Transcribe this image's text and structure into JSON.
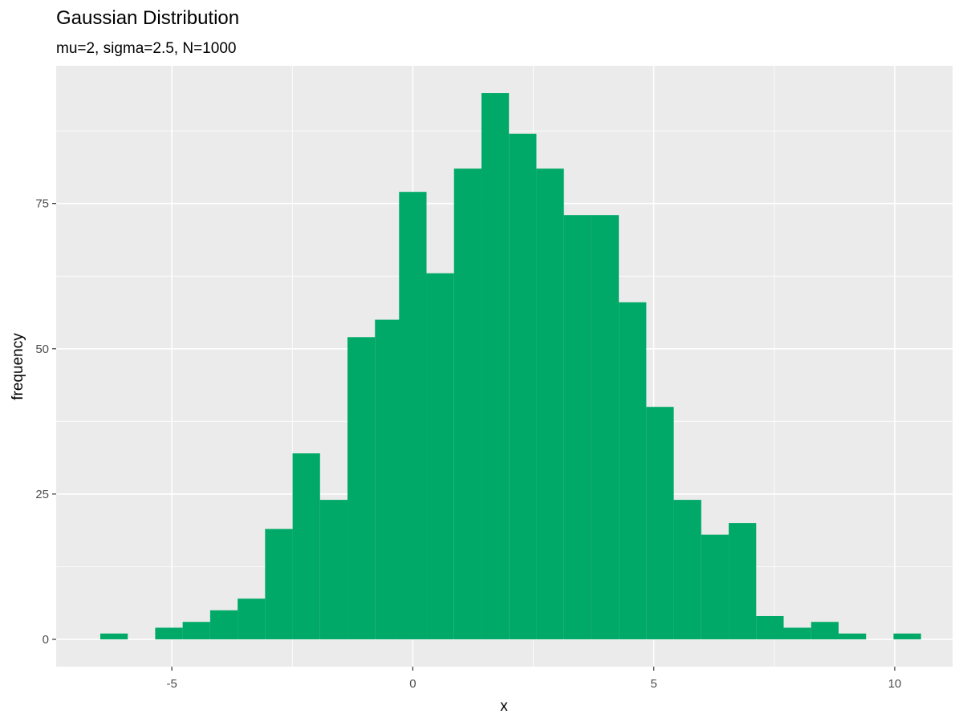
{
  "chart_data": {
    "type": "bar",
    "title": "Gaussian Distribution",
    "subtitle": "mu=2, sigma=2.5, N=1000",
    "xlabel": "x",
    "ylabel": "frequency",
    "xlim": [
      -7.4,
      11.2
    ],
    "ylim": [
      -4.7,
      98.7
    ],
    "x_ticks": [
      -5,
      0,
      5,
      10
    ],
    "y_ticks": [
      0,
      25,
      50,
      75
    ],
    "x_tick_labels": [
      "-5",
      "0",
      "5",
      "10"
    ],
    "y_tick_labels": [
      "0",
      "25",
      "50",
      "75"
    ],
    "grid": true,
    "bar_color": "#00A968",
    "panel_color": "#EBEBEB",
    "grid_color": "#FFFFFF",
    "bin_width": 0.57,
    "bins": [
      {
        "x": -6.2,
        "count": 1
      },
      {
        "x": -5.06,
        "count": 2
      },
      {
        "x": -4.49,
        "count": 3
      },
      {
        "x": -3.92,
        "count": 5
      },
      {
        "x": -3.35,
        "count": 7
      },
      {
        "x": -2.78,
        "count": 19
      },
      {
        "x": -2.21,
        "count": 32
      },
      {
        "x": -1.64,
        "count": 24
      },
      {
        "x": -1.07,
        "count": 52
      },
      {
        "x": -0.5,
        "count": 55
      },
      {
        "x": 0.0,
        "count": 77
      },
      {
        "x": 0.57,
        "count": 63
      },
      {
        "x": 1.14,
        "count": 81
      },
      {
        "x": 1.71,
        "count": 94
      },
      {
        "x": 2.28,
        "count": 87
      },
      {
        "x": 2.85,
        "count": 81
      },
      {
        "x": 3.42,
        "count": 73
      },
      {
        "x": 3.99,
        "count": 73
      },
      {
        "x": 4.56,
        "count": 58
      },
      {
        "x": 5.13,
        "count": 40
      },
      {
        "x": 5.7,
        "count": 24
      },
      {
        "x": 6.27,
        "count": 18
      },
      {
        "x": 6.84,
        "count": 20
      },
      {
        "x": 7.41,
        "count": 4
      },
      {
        "x": 7.98,
        "count": 2
      },
      {
        "x": 8.55,
        "count": 3
      },
      {
        "x": 9.12,
        "count": 1
      },
      {
        "x": 10.26,
        "count": 1
      }
    ]
  }
}
